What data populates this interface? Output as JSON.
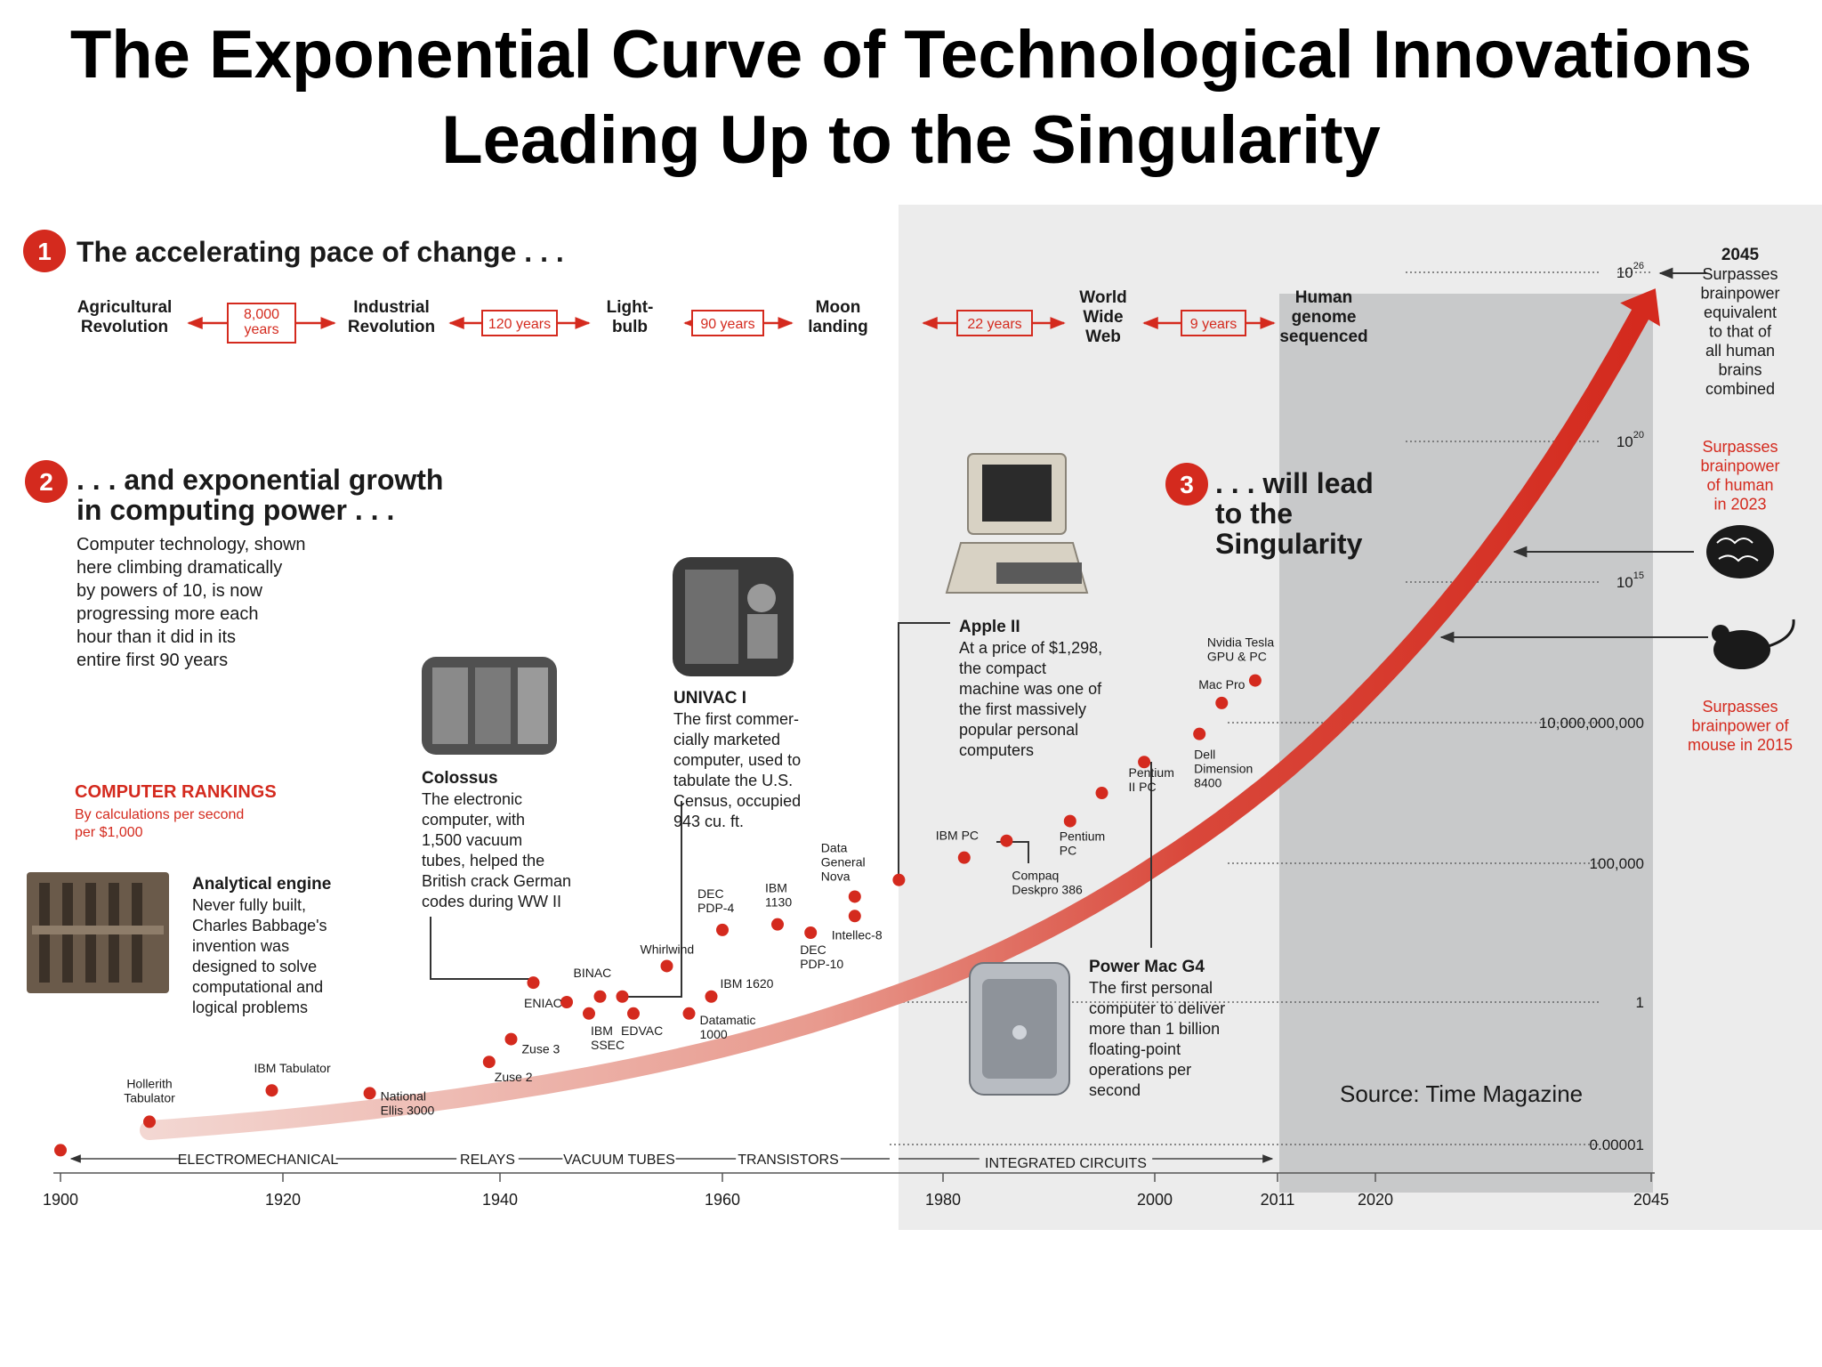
{
  "page_title": [
    "The Exponential Curve of Technological Innovations",
    "Leading Up to the Singularity"
  ],
  "section1": {
    "number": "1",
    "title": "The accelerating pace of change . . ."
  },
  "timeline_events": [
    {
      "label": [
        "Agricultural",
        "Revolution"
      ]
    },
    {
      "label": [
        "Industrial",
        "Revolution"
      ]
    },
    {
      "label": [
        "Light-",
        "bulb"
      ]
    },
    {
      "label": [
        "Moon",
        "landing"
      ]
    },
    {
      "label": [
        "World",
        "Wide",
        "Web"
      ]
    },
    {
      "label": [
        "Human",
        "genome",
        "sequenced"
      ]
    }
  ],
  "timeline_gaps": [
    {
      "label": [
        "8,000",
        "years"
      ]
    },
    {
      "label": [
        "120 years"
      ]
    },
    {
      "label": [
        "90 years"
      ]
    },
    {
      "label": [
        "22 years"
      ]
    },
    {
      "label": [
        "9 years"
      ]
    }
  ],
  "section2": {
    "number": "2",
    "title": [
      ". . . and exponential growth",
      "in computing power . . ."
    ],
    "body": [
      "Computer technology, shown",
      "here climbing dramatically",
      "by powers of 10, is now",
      "progressing more each",
      "hour than it did in its",
      "entire first 90 years"
    ]
  },
  "section3": {
    "number": "3",
    "title": [
      ". . . will lead",
      "to the",
      "Singularity"
    ]
  },
  "rankings": {
    "title": "COMPUTER RANKINGS",
    "subtitle": [
      "By calculations per second",
      "per $1,000"
    ]
  },
  "callouts": {
    "analytical_engine": {
      "title": "Analytical engine",
      "body": [
        "Never fully built,",
        "Charles Babbage's",
        "invention was",
        "designed to solve",
        "computational and",
        "logical problems"
      ]
    },
    "colossus": {
      "title": "Colossus",
      "body": [
        "The electronic",
        "computer, with",
        "1,500 vacuum",
        "tubes, helped the",
        "British crack German",
        "codes during WW II"
      ]
    },
    "univac": {
      "title": "UNIVAC I",
      "body": [
        "The first commer-",
        "cially marketed",
        "computer, used to",
        "tabulate the U.S.",
        "Census, occupied",
        "943 cu. ft."
      ]
    },
    "apple2": {
      "title": "Apple II",
      "body": [
        "At a price of $1,298,",
        "the compact",
        "machine was one of",
        "the first massively",
        "popular personal",
        "computers"
      ]
    },
    "powermac": {
      "title": "Power Mac G4",
      "body": [
        "The first personal",
        "computer to deliver",
        "more than 1 billion",
        "floating-point",
        "operations per",
        "second"
      ]
    }
  },
  "annotations": {
    "a2045": {
      "year": "2045",
      "text": [
        "Surpasses",
        "brainpower",
        "equivalent",
        "to that of",
        "all human",
        "brains",
        "combined"
      ]
    },
    "human": {
      "text": [
        "Surpasses",
        "brainpower",
        "of human",
        "in 2023"
      ]
    },
    "mouse": {
      "text": [
        "Surpasses",
        "brainpower of",
        "mouse in 2015"
      ]
    }
  },
  "source": "Source: Time Magazine",
  "tech_eras": [
    "ELECTROMECHANICAL",
    "RELAYS",
    "VACUUM TUBES",
    "TRANSISTORS",
    "INTEGRATED CIRCUITS"
  ],
  "colors": {
    "accent": "#d42a1e",
    "shade": "#ececec",
    "future": "#c8c9ca",
    "text": "#1a1a1a"
  },
  "chart_data": {
    "type": "scatter",
    "xlabel": "",
    "ylabel": "",
    "y_scale": "log",
    "x_ticks": [
      "1900",
      "1920",
      "1940",
      "1960",
      "1980",
      "2000",
      "2011",
      "2020",
      "2045"
    ],
    "y_ticks": [
      {
        "exp": -5,
        "label": "0.00001"
      },
      {
        "exp": 0,
        "label": "1"
      },
      {
        "exp": 5,
        "label": "100,000"
      },
      {
        "exp": 10,
        "label": "10,000,000,000"
      },
      {
        "exp": 15,
        "label": "10",
        "sup": "15"
      },
      {
        "exp": 20,
        "label": "10",
        "sup": "20"
      },
      {
        "exp": 26,
        "label": "10",
        "sup": "26"
      }
    ],
    "points": [
      {
        "name": "Analytical engine",
        "year": 1900,
        "log10_value": -5.2
      },
      {
        "name": "Hollerith Tabulator",
        "year": 1908,
        "log10_value": -4.2
      },
      {
        "name": "IBM Tabulator",
        "year": 1919,
        "log10_value": -3.1
      },
      {
        "name": "National Ellis 3000",
        "year": 1928,
        "log10_value": -3.2
      },
      {
        "name": "Zuse 2",
        "year": 1939,
        "log10_value": -2.1
      },
      {
        "name": "Zuse 3",
        "year": 1941,
        "log10_value": -1.3
      },
      {
        "name": "Colossus",
        "year": 1943,
        "log10_value": 0.7
      },
      {
        "name": "ENIAC",
        "year": 1946,
        "log10_value": 0.0
      },
      {
        "name": "IBM SSEC",
        "year": 1948,
        "log10_value": -0.4
      },
      {
        "name": "BINAC",
        "year": 1949,
        "log10_value": 0.2
      },
      {
        "name": "UNIVAC I",
        "year": 1951,
        "log10_value": 0.2
      },
      {
        "name": "EDVAC",
        "year": 1952,
        "log10_value": -0.4
      },
      {
        "name": "Whirlwind",
        "year": 1955,
        "log10_value": 1.3
      },
      {
        "name": "Datamatic 1000",
        "year": 1957,
        "log10_value": -0.4
      },
      {
        "name": "IBM 1620",
        "year": 1959,
        "log10_value": 0.2
      },
      {
        "name": "DEC PDP-4",
        "year": 1960,
        "log10_value": 2.6
      },
      {
        "name": "IBM 1130",
        "year": 1965,
        "log10_value": 2.8
      },
      {
        "name": "DEC PDP-10",
        "year": 1968,
        "log10_value": 2.5
      },
      {
        "name": "Intellec-8",
        "year": 1972,
        "log10_value": 3.1
      },
      {
        "name": "Data General Nova",
        "year": 1972,
        "log10_value": 3.8
      },
      {
        "name": "Apple II",
        "year": 1976,
        "log10_value": 4.4
      },
      {
        "name": "IBM PC",
        "year": 1982,
        "log10_value": 5.2
      },
      {
        "name": "Compaq Deskpro 386",
        "year": 1986,
        "log10_value": 5.8
      },
      {
        "name": "Pentium PC",
        "year": 1992,
        "log10_value": 6.5
      },
      {
        "name": "Pentium II PC",
        "year": 1995,
        "log10_value": 7.5
      },
      {
        "name": "Power Mac G4",
        "year": 1999,
        "log10_value": 8.6
      },
      {
        "name": "Dell Dimension 8400",
        "year": 2004,
        "log10_value": 9.6
      },
      {
        "name": "Mac Pro",
        "year": 2006,
        "log10_value": 10.7
      },
      {
        "name": "Nvidia Tesla GPU & PC",
        "year": 2009,
        "log10_value": 11.5
      }
    ]
  }
}
